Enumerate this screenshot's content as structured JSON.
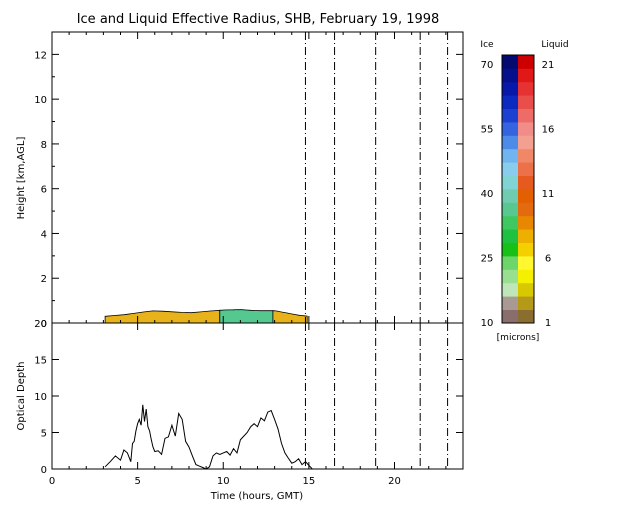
{
  "chart_data": [
    {
      "type": "heatmap",
      "title": "Ice and Liquid Effective Radius, SHB, February 19, 1998",
      "ylabel": "Height [km,AGL]",
      "xlim": [
        0,
        24
      ],
      "ylim": [
        0,
        13
      ],
      "yticks": [
        0,
        2,
        4,
        6,
        8,
        10,
        12
      ],
      "cloud_base_km": 0.0,
      "cloud_top_km": [
        [
          3.1,
          0.3
        ],
        [
          4.4,
          0.38
        ],
        [
          5.2,
          0.48
        ],
        [
          6.0,
          0.55
        ],
        [
          7.0,
          0.5
        ],
        [
          8.0,
          0.45
        ],
        [
          9.0,
          0.52
        ],
        [
          10.0,
          0.58
        ],
        [
          11.0,
          0.6
        ],
        [
          12.0,
          0.55
        ],
        [
          13.0,
          0.55
        ],
        [
          13.7,
          0.45
        ],
        [
          14.4,
          0.35
        ],
        [
          15.0,
          0.3
        ]
      ],
      "effective_radius_regions": [
        {
          "phase": "liquid",
          "t_start": 3.1,
          "t_end": 9.8,
          "radius_microns": 6,
          "color": "#e8b31a"
        },
        {
          "phase": "ice",
          "t_start": 9.8,
          "t_end": 12.9,
          "radius_microns": 38,
          "color": "#55c890"
        },
        {
          "phase": "liquid",
          "t_start": 12.9,
          "t_end": 14.9,
          "radius_microns": 6,
          "color": "#e8b31a"
        }
      ],
      "colorbar": {
        "ice_label": "Ice",
        "liquid_label": "Liquid",
        "units": "[microns]",
        "ice_ticks": [
          "70",
          "55",
          "40",
          "25",
          "10"
        ],
        "liquid_ticks": [
          "21",
          "16",
          "11",
          "6",
          "1"
        ],
        "ice_colors": [
          "#8a6d6d",
          "#a89a92",
          "#bee6b8",
          "#98e090",
          "#6cd66a",
          "#18c018",
          "#20c040",
          "#40c860",
          "#58c890",
          "#70ccb0",
          "#80d4d4",
          "#88ccee",
          "#70b4f0",
          "#4c8ce8",
          "#3464e0",
          "#1c40d0",
          "#0c2ac0",
          "#0818a8",
          "#06108c",
          "#040a70"
        ],
        "liquid_colors": [
          "#8a6e30",
          "#b49a18",
          "#d8c800",
          "#f4f000",
          "#fff830",
          "#f4d000",
          "#eeb000",
          "#e88800",
          "#e46a10",
          "#e26000",
          "#e65a20",
          "#ec7048",
          "#f08868",
          "#f4a090",
          "#f28c88",
          "#ee6c68",
          "#ea4e4a",
          "#e63232",
          "#e01818",
          "#cc0000"
        ]
      }
    },
    {
      "type": "line",
      "xlabel": "Time (hours, GMT)",
      "ylabel": "Optical Depth",
      "xlim": [
        0,
        24
      ],
      "ylim": [
        0,
        20
      ],
      "xticks": [
        0,
        5,
        10,
        15,
        20
      ],
      "yticks": [
        0,
        5,
        10,
        15,
        20
      ],
      "x": [
        3.1,
        3.4,
        3.7,
        4.0,
        4.2,
        4.4,
        4.6,
        4.7,
        4.8,
        4.9,
        5.0,
        5.1,
        5.2,
        5.3,
        5.4,
        5.5,
        5.6,
        5.7,
        5.8,
        5.9,
        6.0,
        6.2,
        6.4,
        6.6,
        6.8,
        7.0,
        7.2,
        7.4,
        7.6,
        7.8,
        8.0,
        8.2,
        8.4,
        8.6,
        8.8,
        9.0,
        9.2,
        9.4,
        9.6,
        9.8,
        10.0,
        10.2,
        10.4,
        10.6,
        10.8,
        11.0,
        11.2,
        11.4,
        11.6,
        11.8,
        12.0,
        12.2,
        12.4,
        12.6,
        12.8,
        13.0,
        13.2,
        13.4,
        13.6,
        13.8,
        14.0,
        14.2,
        14.4,
        14.6,
        14.8,
        15.0,
        15.2
      ],
      "y": [
        0.3,
        1.0,
        1.8,
        1.2,
        2.6,
        2.2,
        1.0,
        3.5,
        3.8,
        5.2,
        6.2,
        6.8,
        6.0,
        8.8,
        6.5,
        8.2,
        5.8,
        5.2,
        4.0,
        3.0,
        2.4,
        2.5,
        2.0,
        4.2,
        4.4,
        6.0,
        4.5,
        7.6,
        6.8,
        3.8,
        3.0,
        1.8,
        0.6,
        0.4,
        0.2,
        0.0,
        0.3,
        1.8,
        2.2,
        2.0,
        2.2,
        2.4,
        1.9,
        2.8,
        2.2,
        4.0,
        4.5,
        5.0,
        5.8,
        6.2,
        5.8,
        7.0,
        6.6,
        7.8,
        8.0,
        6.8,
        5.5,
        3.5,
        2.2,
        1.5,
        0.8,
        1.0,
        1.4,
        0.6,
        1.0,
        0.5,
        0.0
      ]
    }
  ],
  "event_lines": [
    14.8,
    16.5,
    18.9,
    21.5,
    23.1
  ],
  "colors": {
    "axis": "#000000",
    "background": "#ffffff"
  }
}
